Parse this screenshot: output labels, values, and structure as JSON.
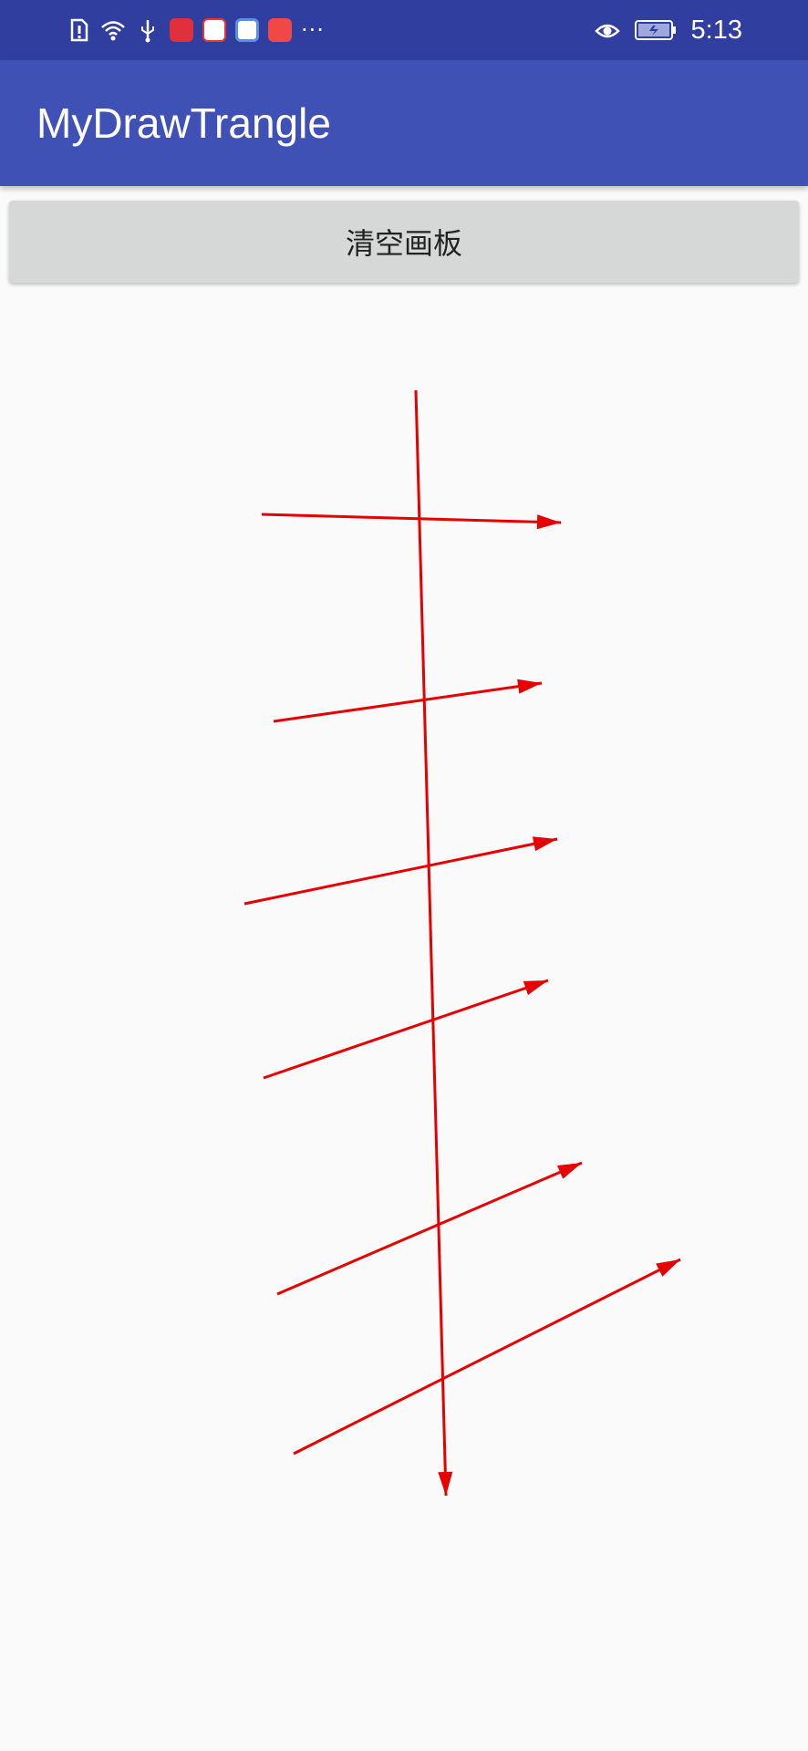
{
  "status_bar": {
    "time": "5:13",
    "left_icons": [
      "sim-alert-icon",
      "wifi-icon",
      "usb-icon",
      "book-app-icon",
      "map-app-icon",
      "music-app-icon",
      "huawei-store-icon",
      "more-dots-icon"
    ],
    "right_icons": [
      "eye-comfort-icon",
      "battery-icon"
    ]
  },
  "app_bar": {
    "title": "MyDrawTrangle"
  },
  "clear_button": {
    "label": "清空画板"
  },
  "canvas": {
    "stroke_color": "#e60000",
    "arrow_count": 7
  },
  "colors": {
    "status_bar": "#303f9f",
    "app_bar": "#3f51b5",
    "background": "#fafafa",
    "button": "#d6d7d7"
  }
}
